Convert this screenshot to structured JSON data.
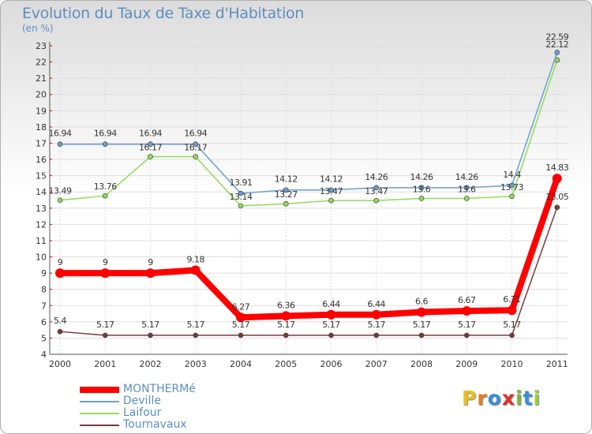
{
  "header": {
    "title": "Evolution du Taux de Taxe d'Habitation",
    "subtitle": "(en %)"
  },
  "brand": {
    "letters": [
      "P",
      "r",
      "o",
      "x",
      "i",
      "t",
      "i"
    ],
    "colors": [
      "#e8c020",
      "#e87a20",
      "#3a8fd8",
      "#e0302a",
      "#7ab83a",
      "#3a8fd8",
      "#9acd32"
    ]
  },
  "chart_data": {
    "type": "line",
    "title": "Evolution du Taux de Taxe d'Habitation",
    "subtitle": "(en %)",
    "x": [
      "2000",
      "2001",
      "2002",
      "2003",
      "2004",
      "2005",
      "2006",
      "2007",
      "2008",
      "2009",
      "2010",
      "2011"
    ],
    "ylim": [
      4,
      23
    ],
    "yticks": [
      "4",
      "5",
      "6",
      "7",
      "8",
      "9",
      "10",
      "11",
      "12",
      "13",
      "14",
      "15",
      "16",
      "17",
      "18",
      "19",
      "20",
      "21",
      "22",
      "23"
    ],
    "grid": true,
    "legend_position": "bottom-left",
    "series": [
      {
        "name": "MONTHERMé",
        "color": "#ff0000",
        "values": [
          9,
          9,
          9,
          9.18,
          6.27,
          6.36,
          6.44,
          6.44,
          6.6,
          6.67,
          6.71,
          14.83
        ],
        "labels": [
          "9",
          "9",
          "9",
          "9.18",
          "6.27",
          "6.36",
          "6.44",
          "6.44",
          "6.6",
          "6.67",
          "6.71",
          "14.83"
        ]
      },
      {
        "name": "Deville",
        "color": "#6a9fcf",
        "values": [
          16.94,
          16.94,
          16.94,
          16.94,
          13.91,
          14.12,
          14.12,
          14.26,
          14.26,
          14.26,
          14.4,
          22.59
        ],
        "labels": [
          "16.94",
          "16.94",
          "16.94",
          "16.94",
          "13.91",
          "14.12",
          "14.12",
          "14.26",
          "14.26",
          "14.26",
          "14.4",
          "22.59"
        ]
      },
      {
        "name": "Laifour",
        "color": "#8fdc5a",
        "values": [
          13.49,
          13.76,
          16.17,
          16.17,
          13.14,
          13.27,
          13.47,
          13.47,
          13.6,
          13.6,
          13.73,
          22.12
        ],
        "labels": [
          "13.49",
          "13.76",
          "16.17",
          "16.17",
          "13.14",
          "13.27",
          "13.47",
          "13.47",
          "13.6",
          "13.6",
          "13.73",
          "22.12"
        ]
      },
      {
        "name": "Tournavaux",
        "color": "#7a3a3a",
        "values": [
          5.4,
          5.17,
          5.17,
          5.17,
          5.17,
          5.17,
          5.17,
          5.17,
          5.17,
          5.17,
          5.17,
          13.05
        ],
        "labels": [
          "5.4",
          "5.17",
          "5.17",
          "5.17",
          "5.17",
          "5.17",
          "5.17",
          "5.17",
          "5.17",
          "5.17",
          "5.17",
          "13.05"
        ]
      }
    ]
  }
}
